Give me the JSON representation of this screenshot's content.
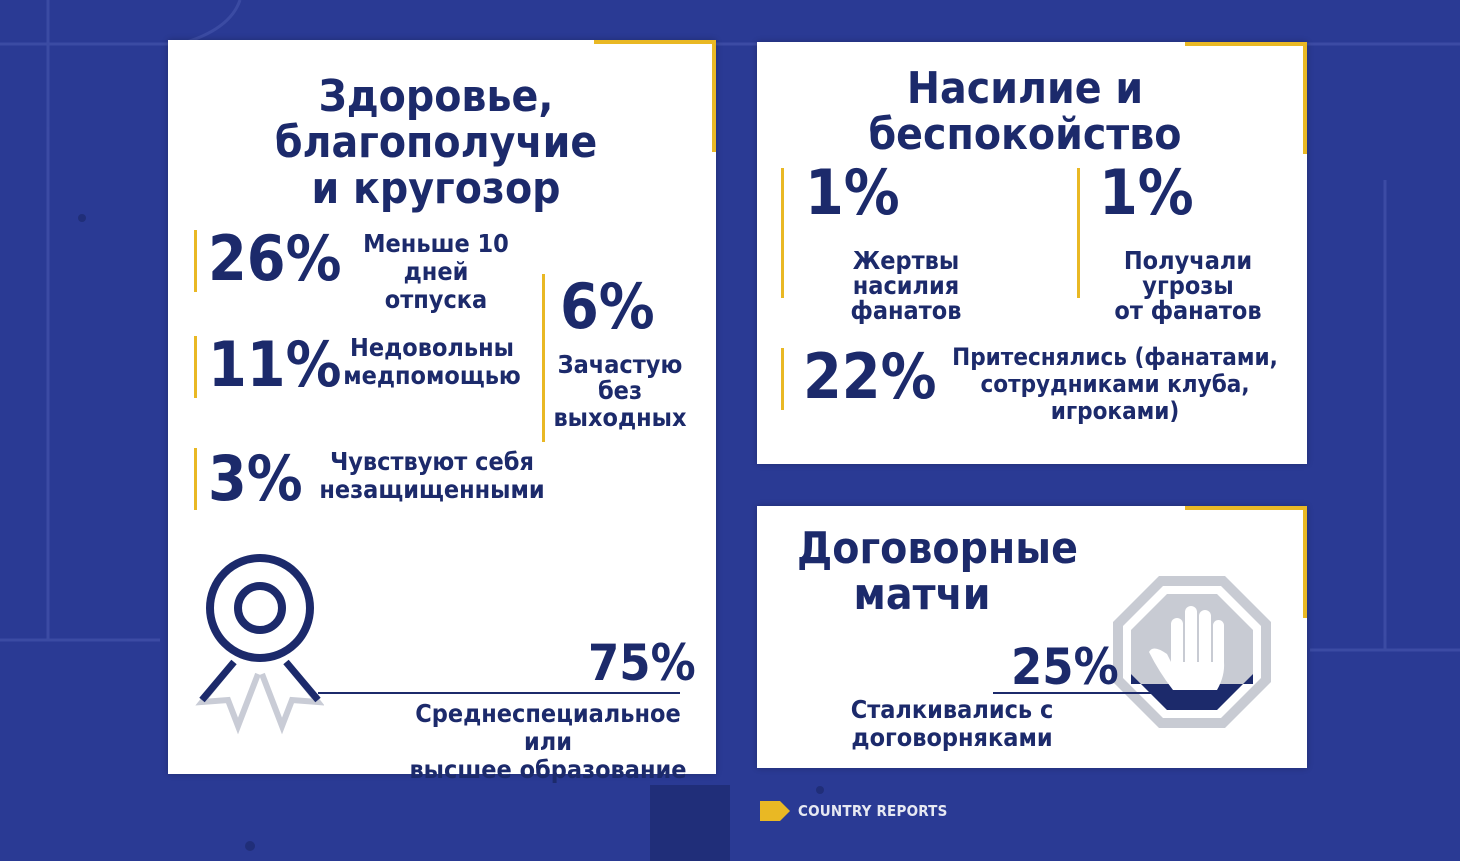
{
  "colors": {
    "background": "#2a3a94",
    "navy": "#1c2a6b",
    "accent": "#e9b824",
    "card": "#ffffff"
  },
  "health": {
    "title_line1": "Здоровье, благополучие",
    "title_line2": "и кругозор",
    "stat1": {
      "value": "26%",
      "label_line1": "Меньше 10 дней",
      "label_line2": "отпуска"
    },
    "stat2": {
      "value": "11%",
      "label_line1": "Недовольны",
      "label_line2": "медпомощью"
    },
    "stat3": {
      "value": "3%",
      "label_line1": "Чувствуют себя",
      "label_line2": "незащищенными"
    },
    "stat4": {
      "value": "6%",
      "label_line1": "Зачастую",
      "label_line2": "без",
      "label_line3": "выходных"
    },
    "education": {
      "value": "75%",
      "label_line1": "Среднеспециальное или",
      "label_line2": "высшее образование"
    },
    "award_icon": "award-ribbon-icon"
  },
  "violence": {
    "title": "Насилие и беспокойство",
    "stat1": {
      "value": "1%",
      "label_line1": "Жертвы насилия",
      "label_line2": "фанатов"
    },
    "stat2": {
      "value": "1%",
      "label_line1": "Получали угрозы",
      "label_line2": "от фанатов"
    },
    "stat3": {
      "value": "22%",
      "label_line1": "Притеснялись (фанатами,",
      "label_line2": "сотрудниками клуба, игроками)"
    }
  },
  "matches": {
    "title_line1": "Договорные",
    "title_line2": "матчи",
    "stat": {
      "value": "25%",
      "label": "Сталкивались с договорняками",
      "fraction": 0.25
    },
    "stop_icon": "stop-hand-icon"
  },
  "footer": {
    "label": "COUNTRY REPORTS",
    "icon": "arrow-tag-icon"
  }
}
